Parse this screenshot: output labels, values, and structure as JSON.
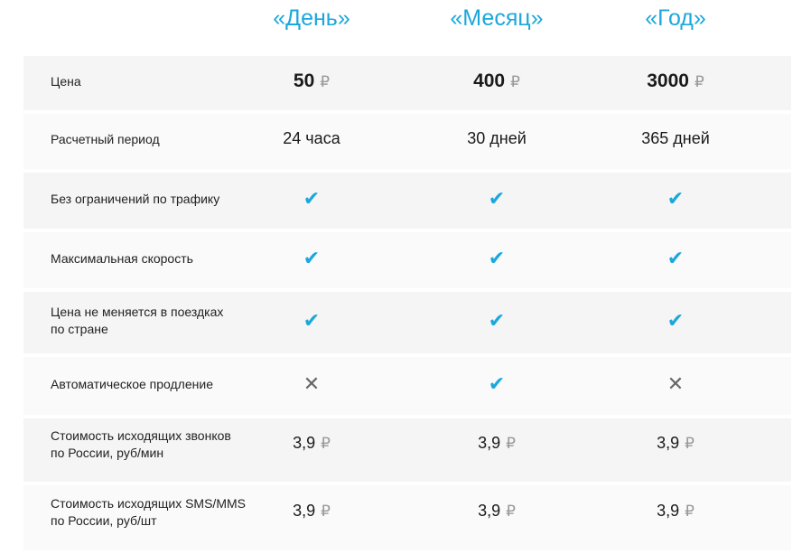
{
  "plans": [
    "«День»",
    "«Месяц»",
    "«Год»"
  ],
  "currency": "₽",
  "colors": {
    "accent": "#1aa8dc",
    "row_dark": "#f5f5f5",
    "row_light": "#fafafa"
  },
  "rows": [
    {
      "label": "Цена",
      "type": "price",
      "values": [
        "50",
        "400",
        "3000"
      ]
    },
    {
      "label": "Расчетный период",
      "type": "text",
      "values": [
        "24 часа",
        "30 дней",
        "365 дней"
      ]
    },
    {
      "label": "Без ограничений по трафику",
      "type": "bool",
      "values": [
        true,
        true,
        true
      ]
    },
    {
      "label": "Максимальная скорость",
      "type": "bool",
      "values": [
        true,
        true,
        true
      ]
    },
    {
      "label": "Цена не меняется в поездках\nпо стране",
      "type": "bool",
      "values": [
        true,
        true,
        true
      ]
    },
    {
      "label": "Автоматическое продление",
      "type": "bool",
      "values": [
        false,
        true,
        false
      ]
    },
    {
      "label": "Стоимость исходящих звонков\nпо России, руб/мин",
      "type": "money",
      "values": [
        "3,9",
        "3,9",
        "3,9"
      ]
    },
    {
      "label": "Стоимость исходящих SMS/MMS\nпо России, руб/шт",
      "type": "money",
      "values": [
        "3,9",
        "3,9",
        "3,9"
      ]
    }
  ]
}
